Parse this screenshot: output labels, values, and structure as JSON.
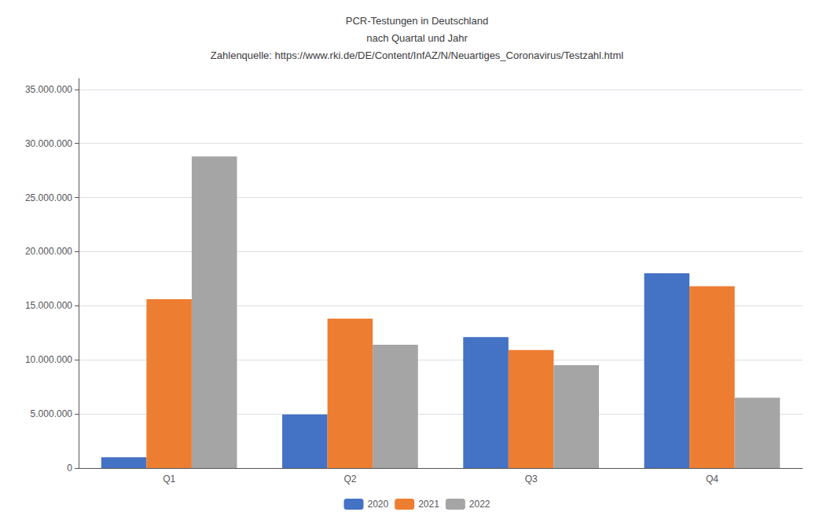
{
  "chart_data": {
    "type": "bar",
    "title": "PCR-Testungen in Deutschland\nnach Quartal und Jahr\nZahlenquelle: https://www.rki.de/DE/Content/InfAZ/N/Neuartiges_Coronavirus/Testzahl.html",
    "categories": [
      "Q1",
      "Q2",
      "Q3",
      "Q4"
    ],
    "series": [
      {
        "name": "2020",
        "color": "#4472C4",
        "values": [
          1000000,
          4950000,
          12100000,
          18000000
        ]
      },
      {
        "name": "2021",
        "color": "#ED7D31",
        "values": [
          15600000,
          13800000,
          10900000,
          16800000
        ]
      },
      {
        "name": "2022",
        "color": "#A5A5A5",
        "values": [
          28800000,
          11400000,
          9500000,
          6500000
        ]
      }
    ],
    "ylim": [
      0,
      36000000
    ],
    "yticks": [
      0,
      {
        "value": 5000000,
        "label": "5.000.000"
      },
      {
        "value": 10000000,
        "label": "10.000.000"
      },
      {
        "value": 15000000,
        "label": "15.000.000"
      },
      {
        "value": 20000000,
        "label": "20.000.000"
      },
      {
        "value": 25000000,
        "label": "25.000.000"
      },
      {
        "value": 30000000,
        "label": "30.000.000"
      },
      {
        "value": 35000000,
        "label": "35.000.000"
      }
    ],
    "grid": true,
    "legend": "bottom"
  }
}
